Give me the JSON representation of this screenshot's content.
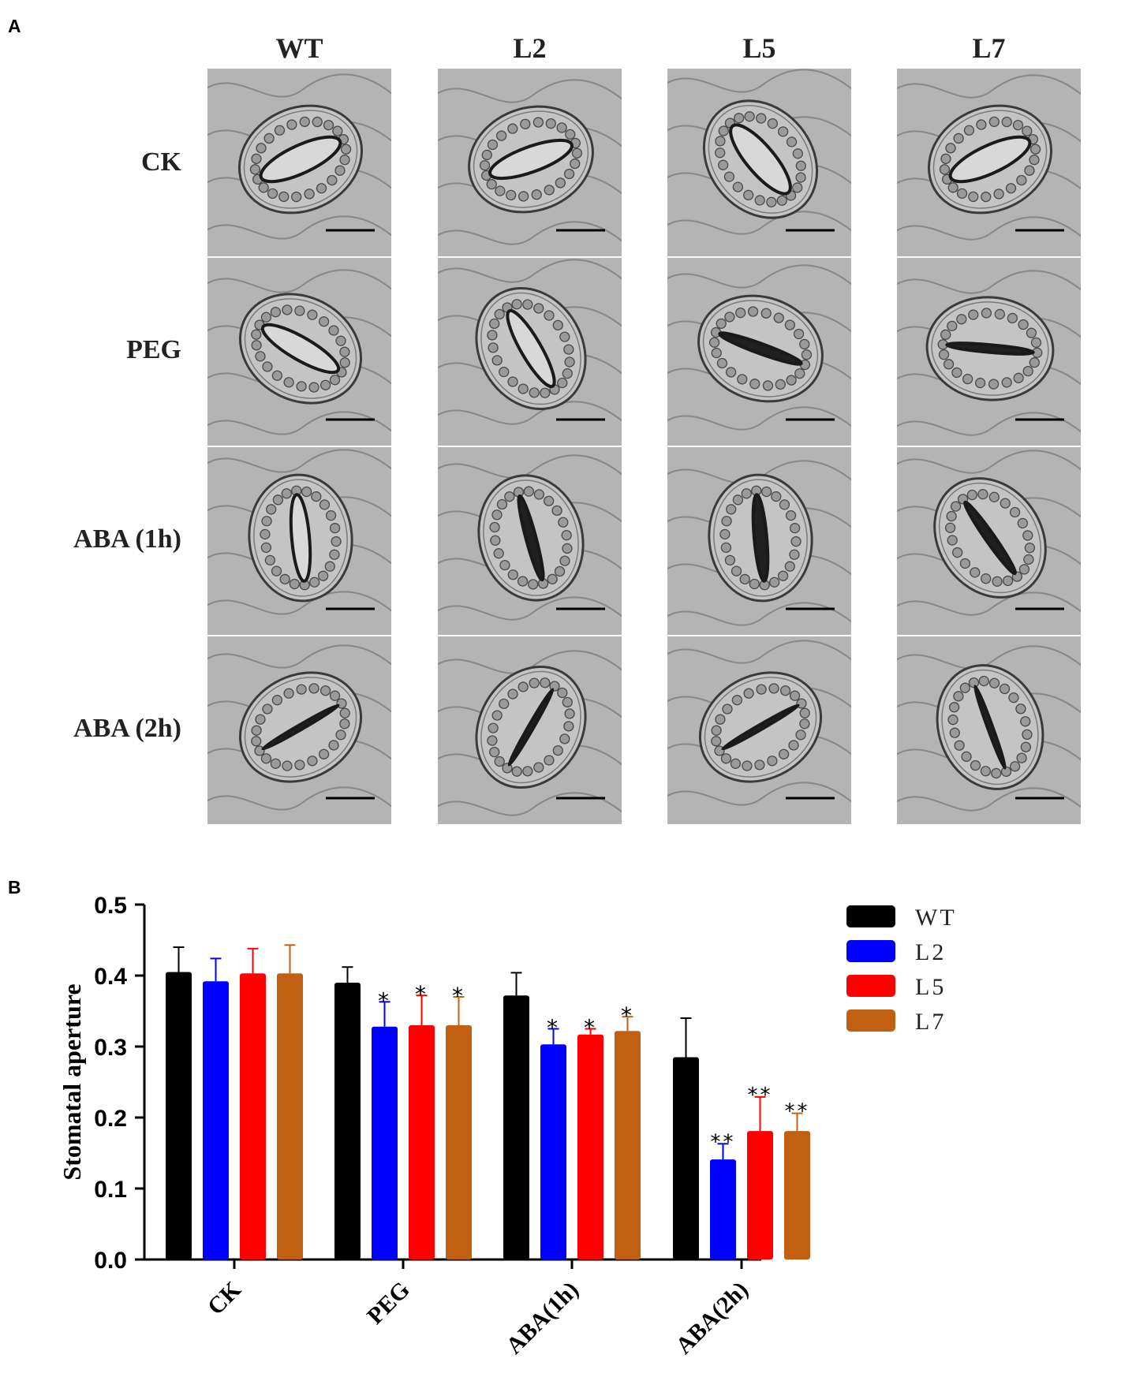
{
  "panel_a": {
    "label": "A",
    "columns": [
      "WT",
      "L2",
      "L5",
      "L7"
    ],
    "rows": [
      "CK",
      "PEG",
      "ABA (1h)",
      "ABA (2h)"
    ],
    "micrographs": [
      [
        {
          "open": 0.55,
          "angle": -25
        },
        {
          "open": 0.5,
          "angle": -20
        },
        {
          "open": 0.55,
          "angle": 50
        },
        {
          "open": 0.55,
          "angle": -25
        }
      ],
      [
        {
          "open": 0.45,
          "angle": 30
        },
        {
          "open": 0.4,
          "angle": 60
        },
        {
          "open": 0.2,
          "angle": 20
        },
        {
          "open": 0.15,
          "angle": 5
        }
      ],
      [
        {
          "open": 0.35,
          "angle": 85
        },
        {
          "open": 0.2,
          "angle": 75
        },
        {
          "open": 0.25,
          "angle": 85
        },
        {
          "open": 0.18,
          "angle": 55
        }
      ],
      [
        {
          "open": 0.08,
          "angle": -30
        },
        {
          "open": 0.1,
          "angle": -60
        },
        {
          "open": 0.08,
          "angle": -30
        },
        {
          "open": 0.1,
          "angle": 70
        }
      ]
    ]
  },
  "panel_b": {
    "label": "B"
  },
  "chart_data": {
    "type": "bar",
    "title": "",
    "xlabel": "",
    "ylabel": "Stomatal aperture",
    "ylim": [
      0.0,
      0.5
    ],
    "yticks": [
      "0.0",
      "0.1",
      "0.2",
      "0.3",
      "0.4",
      "0.5"
    ],
    "categories": [
      "CK",
      "PEG",
      "ABA(1h)",
      "ABA(2h)"
    ],
    "legend_position": "top-right",
    "series": [
      {
        "name": "WT",
        "color": "#000000",
        "values": [
          0.405,
          0.39,
          0.372,
          0.285
        ],
        "errors": [
          0.035,
          0.022,
          0.032,
          0.055
        ],
        "marks": [
          "",
          "",
          "",
          ""
        ]
      },
      {
        "name": "L2",
        "color": "#0000ff",
        "values": [
          0.392,
          0.328,
          0.303,
          0.141
        ],
        "errors": [
          0.032,
          0.035,
          0.022,
          0.022
        ],
        "marks": [
          "",
          "*",
          "*",
          "**"
        ]
      },
      {
        "name": "L5",
        "color": "#ff0000",
        "values": [
          0.403,
          0.33,
          0.317,
          0.181
        ],
        "errors": [
          0.035,
          0.042,
          0.008,
          0.048
        ],
        "marks": [
          "",
          "*",
          "*",
          "**"
        ]
      },
      {
        "name": "L7",
        "color": "#c06010",
        "values": [
          0.403,
          0.33,
          0.322,
          0.181
        ],
        "errors": [
          0.04,
          0.04,
          0.02,
          0.025
        ],
        "marks": [
          "",
          "*",
          "*",
          "**"
        ]
      }
    ]
  }
}
